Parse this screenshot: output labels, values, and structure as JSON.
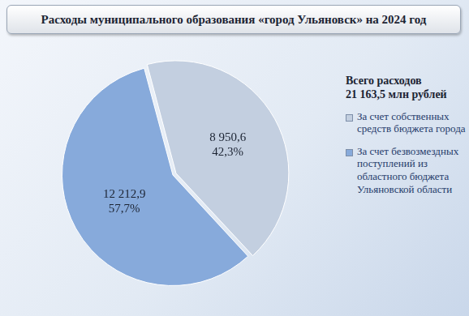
{
  "chart_data": {
    "type": "pie",
    "title": "Расходы муниципального образования «город Ульяновск» на 2024 год",
    "subtitle": "Всего расходов\n21 163,5 млн рублей",
    "categories": [
      "За счет собственных средств бюджета города",
      "За счет безвозмездных поступлений из областного бюджета Ульяновской области"
    ],
    "values": [
      8950.6,
      12212.9
    ],
    "value_labels": [
      "8 950,6",
      "12 212,9"
    ],
    "percentages": [
      42.3,
      57.7
    ],
    "percentage_labels": [
      "42,3%",
      "57,7%"
    ],
    "colors": [
      "#c3cfe0",
      "#87aadb"
    ],
    "data_labels": true,
    "legend": "right"
  }
}
